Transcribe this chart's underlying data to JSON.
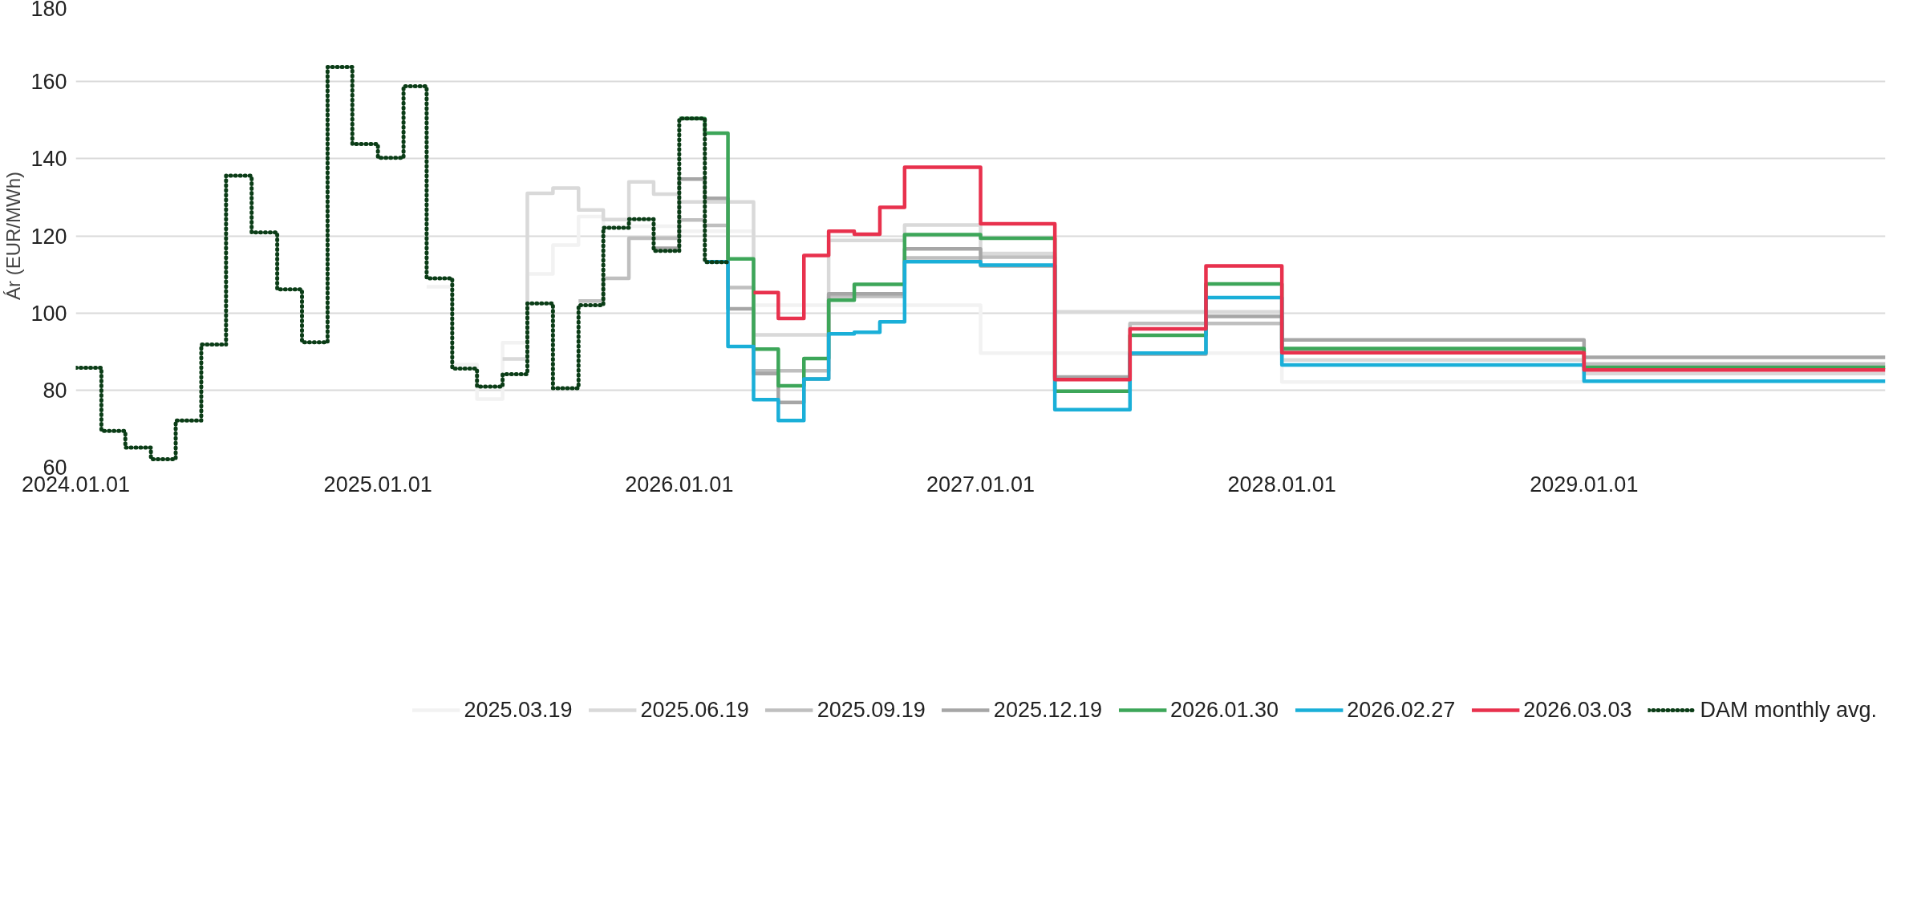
{
  "chart_data": {
    "type": "step",
    "ylabel": "Ár (EUR/MWh)",
    "xlim": [
      "2024-01-01",
      "2030-01-01"
    ],
    "ylim": [
      60,
      180
    ],
    "xticks": [
      {
        "value": "2024-01-01",
        "label": "2024.01.01"
      },
      {
        "value": "2025-01-01",
        "label": "2025.01.01"
      },
      {
        "value": "2026-01-01",
        "label": "2026.01.01"
      },
      {
        "value": "2027-01-01",
        "label": "2027.01.01"
      },
      {
        "value": "2028-01-01",
        "label": "2028.01.01"
      },
      {
        "value": "2029-01-01",
        "label": "2029.01.01"
      }
    ],
    "yticks": [
      60,
      80,
      100,
      120,
      140,
      160,
      180
    ],
    "grid": "y",
    "legend": "bottom",
    "line_style": "solid",
    "series": [
      {
        "name": "2025.03.19",
        "color": "#f2f2f2",
        "x": [
          "2025-03",
          "2025-04",
          "2025-05",
          "2025-06",
          "2025-07",
          "2025-08",
          "2025-09",
          "2025-10",
          "2026-01",
          "2026-04",
          "2027-01",
          "2028-01",
          "2029-01"
        ],
        "values": [
          106.8,
          86.6,
          77.7,
          92.3,
          110.1,
          117.6,
          125.0,
          122.5,
          121.2,
          102.0,
          89.6,
          82.1,
          82.1
        ]
      },
      {
        "name": "2025.06.19",
        "color": "#d9d9d9",
        "x": [
          "2025-06",
          "2025-07",
          "2025-08",
          "2025-09",
          "2025-10",
          "2025-11",
          "2025-12",
          "2026-01",
          "2026-04",
          "2026-07",
          "2026-10",
          "2027-01",
          "2027-04",
          "2028-01",
          "2029-01",
          "2030-01"
        ],
        "values": [
          88.1,
          131.0,
          132.4,
          126.7,
          124.2,
          134.0,
          130.8,
          128.8,
          94.3,
          118.8,
          122.8,
          115.4,
          100.3,
          87.8,
          84.3,
          84.3
        ]
      },
      {
        "name": "2025.09.19",
        "color": "#bfbfbf",
        "x": [
          "2025-09",
          "2025-10",
          "2025-11",
          "2026-01",
          "2026-02",
          "2026-03",
          "2026-04",
          "2026-07",
          "2026-10",
          "2027-01",
          "2027-04",
          "2027-07",
          "2028-01",
          "2029-01",
          "2030-01"
        ],
        "values": [
          103.1,
          109.0,
          119.4,
          124.1,
          122.7,
          106.6,
          85.0,
          104.3,
          114.3,
          114.5,
          83.0,
          97.3,
          90.2,
          86.8,
          86.8
        ]
      },
      {
        "name": "2025.12.19",
        "color": "#a6a6a6",
        "x": [
          "2025-12",
          "2026-01",
          "2026-02",
          "2026-03",
          "2026-04",
          "2026-05",
          "2026-06",
          "2026-07",
          "2026-10",
          "2027-01",
          "2027-04",
          "2027-07",
          "2027-10",
          "2028-01",
          "2029-01",
          "2030-01"
        ],
        "values": [
          116.8,
          134.7,
          129.7,
          101.1,
          84.3,
          76.8,
          82.9,
          105.0,
          116.6,
          112.2,
          83.4,
          89.3,
          99.1,
          93.0,
          88.5,
          88.5
        ]
      },
      {
        "name": "2026.01.30",
        "color": "#3da659",
        "x": [
          "2026-01",
          "2026-02",
          "2026-03",
          "2026-04",
          "2026-05",
          "2026-06",
          "2026-07",
          "2026-08",
          "2026-10",
          "2027-01",
          "2027-04",
          "2027-07",
          "2027-10",
          "2028-01",
          "2029-01",
          "2030-01"
        ],
        "values": [
          150.4,
          146.6,
          114.0,
          90.6,
          81.1,
          88.2,
          103.3,
          107.4,
          120.3,
          119.4,
          79.7,
          94.2,
          107.5,
          90.8,
          85.9,
          85.9
        ]
      },
      {
        "name": "2026.02.27",
        "color": "#1aafd8",
        "x": [
          "2026-02",
          "2026-03",
          "2026-04",
          "2026-05",
          "2026-06",
          "2026-07",
          "2026-08",
          "2026-09",
          "2026-10",
          "2027-01",
          "2027-04",
          "2027-07",
          "2027-10",
          "2028-01",
          "2029-01",
          "2030-01"
        ],
        "values": [
          113.3,
          91.3,
          77.5,
          72.1,
          82.9,
          94.6,
          95.0,
          97.7,
          113.3,
          112.4,
          74.9,
          89.6,
          104.0,
          86.5,
          82.3,
          82.3
        ]
      },
      {
        "name": "2026.03.03",
        "color": "#e8314d",
        "x": [
          "2026-04",
          "2026-05",
          "2026-06",
          "2026-07",
          "2026-08",
          "2026-09",
          "2026-10",
          "2027-01",
          "2027-04",
          "2027-07",
          "2027-10",
          "2028-01",
          "2029-01",
          "2030-01"
        ],
        "values": [
          105.3,
          98.6,
          114.9,
          121.2,
          120.4,
          127.4,
          137.8,
          123.1,
          82.7,
          95.9,
          112.2,
          89.7,
          85.2,
          85.2
        ]
      },
      {
        "name": "DAM monthly avg.",
        "color": "#0b3d17",
        "line_style": "dotted",
        "x": [
          "2024-01",
          "2024-02",
          "2024-03",
          "2024-04",
          "2024-05",
          "2024-06",
          "2024-07",
          "2024-08",
          "2024-09",
          "2024-10",
          "2024-11",
          "2024-12",
          "2025-01",
          "2025-02",
          "2025-03",
          "2025-04",
          "2025-05",
          "2025-06",
          "2025-07",
          "2025-08",
          "2025-09",
          "2025-10",
          "2025-11",
          "2025-12",
          "2026-01",
          "2026-02",
          "2026-03"
        ],
        "values": [
          85.8,
          69.4,
          65.1,
          62.1,
          72.1,
          91.8,
          135.6,
          120.9,
          106.1,
          92.4,
          163.8,
          143.8,
          140.2,
          158.8,
          109.0,
          85.6,
          80.9,
          84.1,
          102.5,
          80.5,
          102.0,
          122.1,
          124.3,
          116.1,
          150.4,
          113.2,
          113.2
        ]
      }
    ]
  }
}
